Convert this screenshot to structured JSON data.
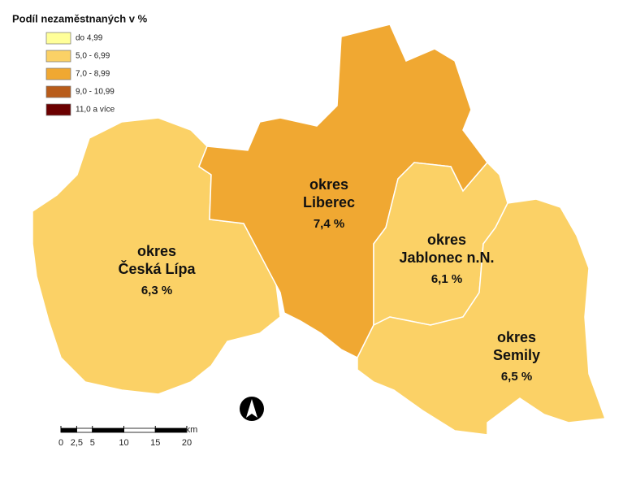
{
  "legend": {
    "title": "Podíl nezaměstnaných v %",
    "items": [
      {
        "label": "do 4,99",
        "color": "#ffff99"
      },
      {
        "label": "5,0 - 6,99",
        "color": "#fbd166"
      },
      {
        "label": "7,0 - 8,99",
        "color": "#f0a832"
      },
      {
        "label": "9,0 - 10,99",
        "color": "#b85c1a"
      },
      {
        "label": "11,0 a více",
        "color": "#6b0000"
      }
    ]
  },
  "regions": [
    {
      "name": [
        "okres",
        "Česká Lípa"
      ],
      "value": "6,3 %",
      "color": "#fbd166"
    },
    {
      "name": [
        "okres",
        "Liberec"
      ],
      "value": "7,4 %",
      "color": "#f0a832"
    },
    {
      "name": [
        "okres",
        "Jablonec n.N."
      ],
      "value": "6,1 %",
      "color": "#fbd166"
    },
    {
      "name": [
        "okres",
        "Semily"
      ],
      "value": "6,5 %",
      "color": "#fbd166"
    }
  ],
  "scale": {
    "ticks": [
      0,
      {
        "value": 2.5,
        "label": "2,5"
      },
      5,
      10,
      15,
      20
    ],
    "unit": "km"
  }
}
